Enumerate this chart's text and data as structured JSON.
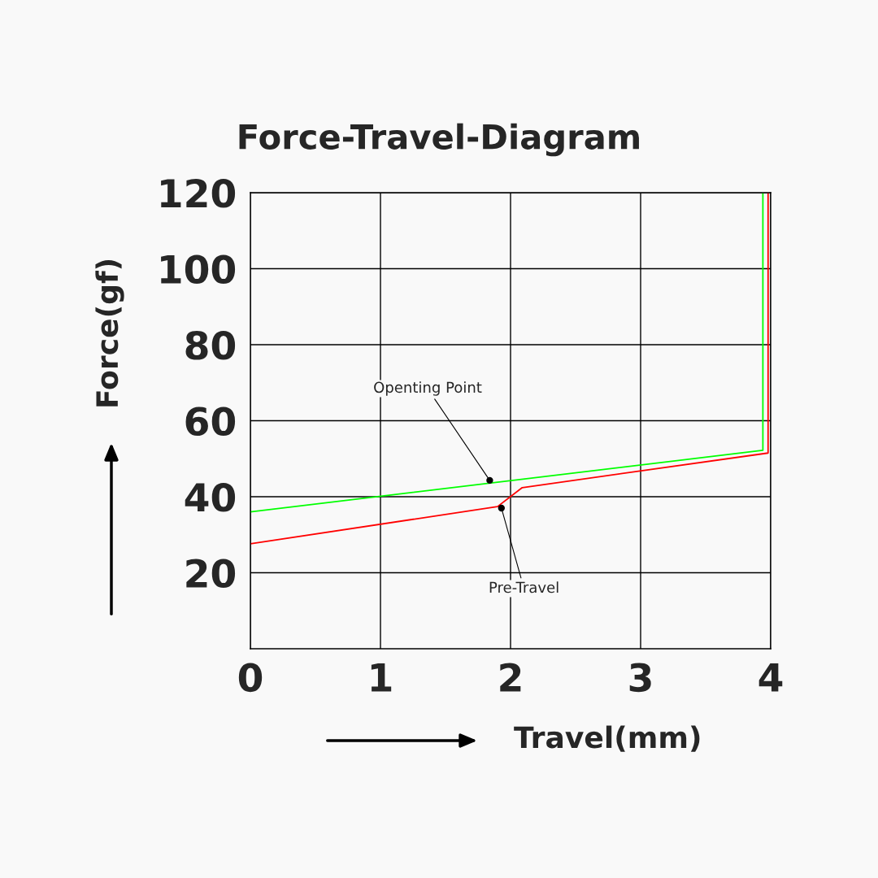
{
  "chart_data": {
    "type": "line",
    "title": "Force-Travel-Diagram",
    "xlabel": "Travel(mm)",
    "ylabel": "Force(gf)",
    "xlim": [
      0,
      4
    ],
    "ylim": [
      0,
      120
    ],
    "xticks": [
      0,
      1,
      2,
      3,
      4
    ],
    "yticks": [
      20,
      40,
      60,
      80,
      100,
      120
    ],
    "grid": true,
    "marker": "none",
    "series": [
      {
        "color": "#00ff00",
        "x": [
          0,
          3.94,
          3.94
        ],
        "values": [
          36,
          52.2,
          120
        ]
      },
      {
        "color": "#ff0000",
        "x": [
          0,
          1.9,
          2.09,
          3.98,
          3.98
        ],
        "values": [
          27.6,
          37.4,
          42.4,
          51.5,
          120
        ]
      }
    ],
    "annotations": [
      {
        "text": "Openting Point",
        "x": 1.84,
        "y": 44.3
      },
      {
        "text": "Pre-Travel",
        "x": 1.93,
        "y": 37.0
      }
    ]
  }
}
